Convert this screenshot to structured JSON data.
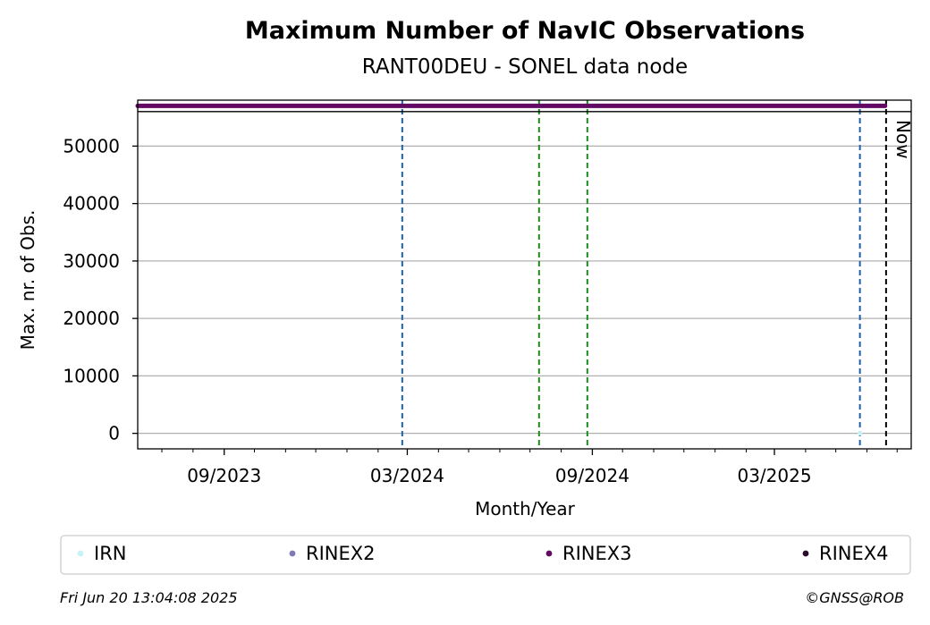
{
  "chart_data": {
    "type": "scatter",
    "title": "Maximum Number of NavIC Observations",
    "subtitle": "RANT00DEU - SONEL data node",
    "xlabel": "Month/Year",
    "ylabel": "Max. nr. of Obs.",
    "x_range": [
      "2023-06-07",
      "2025-07-15"
    ],
    "ylim": [
      -2700,
      58000
    ],
    "y_ticks": [
      0,
      10000,
      20000,
      30000,
      40000,
      50000
    ],
    "x_ticks": [
      {
        "date": "2023-09-01",
        "label": "09/2023"
      },
      {
        "date": "2024-03-01",
        "label": "03/2024"
      },
      {
        "date": "2024-09-01",
        "label": "09/2024"
      },
      {
        "date": "2025-03-01",
        "label": "03/2025"
      }
    ],
    "x_minor_ticks": [
      "2023-07-01",
      "2023-08-01",
      "2023-10-01",
      "2023-11-01",
      "2023-12-01",
      "2024-01-01",
      "2024-02-01",
      "2024-04-01",
      "2024-05-01",
      "2024-06-01",
      "2024-07-01",
      "2024-08-01",
      "2024-10-01",
      "2024-11-01",
      "2024-12-01",
      "2025-01-01",
      "2025-02-01",
      "2025-04-01",
      "2025-05-01",
      "2025-06-01",
      "2025-07-01"
    ],
    "grid": "y",
    "series": [
      {
        "name": "IRN",
        "color": "#c6f3f5",
        "points": [
          {
            "x": "2025-05-25",
            "y": 0
          }
        ]
      },
      {
        "name": "RINEX2",
        "color": "#7f79b8",
        "points": []
      },
      {
        "name": "RINEX3",
        "color": "#620a63",
        "line": {
          "x_start": "2023-06-07",
          "x_end": "2025-06-19",
          "y": 57000
        }
      },
      {
        "name": "RINEX4",
        "color": "#2b0b2c",
        "points": []
      }
    ],
    "vertical_lines": [
      {
        "x": "2024-02-25",
        "color": "#1f5fb0",
        "style": "dashed"
      },
      {
        "x": "2024-07-10",
        "color": "#1a8a1a",
        "style": "dashed"
      },
      {
        "x": "2024-08-27",
        "color": "#1a8a1a",
        "style": "dashed"
      },
      {
        "x": "2025-05-25",
        "color": "#1f5fb0",
        "style": "dashed"
      },
      {
        "x": "2025-06-20",
        "color": "#000000",
        "style": "dashed",
        "label": "Now"
      }
    ],
    "horizontal_lines": [
      {
        "y": 56000,
        "color": "#000000"
      }
    ],
    "legend": {
      "placement": "bottom"
    }
  },
  "footer": {
    "timestamp": "Fri Jun 20 13:04:08 2025",
    "credit": "©GNSS@ROB"
  }
}
